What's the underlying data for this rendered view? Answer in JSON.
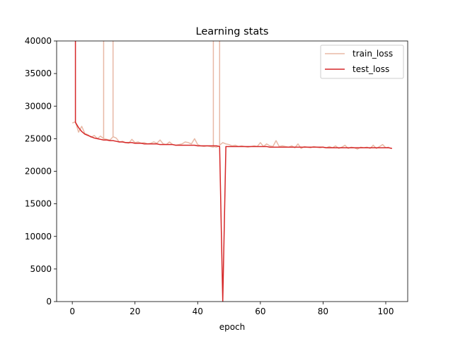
{
  "chart_data": {
    "type": "line",
    "title": "Learning stats",
    "xlabel": "epoch",
    "ylabel": "",
    "xlim": [
      -5,
      107
    ],
    "ylim": [
      0,
      40000
    ],
    "xticks": [
      0,
      20,
      40,
      60,
      80,
      100
    ],
    "yticks": [
      0,
      5000,
      10000,
      15000,
      20000,
      25000,
      30000,
      35000,
      40000
    ],
    "grid": false,
    "legend_position": "top-right",
    "series": [
      {
        "name": "train_loss",
        "color": "#e8b9a6",
        "points": [
          [
            0,
            27400
          ],
          [
            1,
            27600
          ],
          [
            2,
            26000
          ],
          [
            3,
            26900
          ],
          [
            4,
            25800
          ],
          [
            5,
            25600
          ],
          [
            6,
            25200
          ],
          [
            7,
            25500
          ],
          [
            8,
            25000
          ],
          [
            9,
            25400
          ],
          [
            10,
            25000
          ],
          [
            10,
            40000
          ],
          [
            10,
            40000
          ],
          [
            10,
            25000
          ],
          [
            11,
            24900
          ],
          [
            12,
            24800
          ],
          [
            13,
            25300
          ],
          [
            13,
            40000
          ],
          [
            13,
            40000
          ],
          [
            13,
            25300
          ],
          [
            14,
            25100
          ],
          [
            15,
            24500
          ],
          [
            16,
            24600
          ],
          [
            17,
            24400
          ],
          [
            18,
            24300
          ],
          [
            19,
            24900
          ],
          [
            20,
            24400
          ],
          [
            21,
            24500
          ],
          [
            22,
            24300
          ],
          [
            23,
            24400
          ],
          [
            24,
            24200
          ],
          [
            25,
            24300
          ],
          [
            26,
            24500
          ],
          [
            27,
            24300
          ],
          [
            28,
            24800
          ],
          [
            29,
            24200
          ],
          [
            30,
            24100
          ],
          [
            31,
            24500
          ],
          [
            32,
            24100
          ],
          [
            33,
            24000
          ],
          [
            34,
            24100
          ],
          [
            35,
            24200
          ],
          [
            36,
            24500
          ],
          [
            37,
            24400
          ],
          [
            38,
            24200
          ],
          [
            39,
            25000
          ],
          [
            40,
            24100
          ],
          [
            41,
            23900
          ],
          [
            42,
            23800
          ],
          [
            43,
            23900
          ],
          [
            44,
            23800
          ],
          [
            45,
            23700
          ],
          [
            45,
            40000
          ],
          [
            45,
            40000
          ],
          [
            45,
            23800
          ],
          [
            46,
            23700
          ],
          [
            47,
            23900
          ],
          [
            47,
            40000
          ],
          [
            47,
            40000
          ],
          [
            47,
            24000
          ],
          [
            48,
            24400
          ],
          [
            49,
            24200
          ],
          [
            50,
            24100
          ],
          [
            51,
            23900
          ],
          [
            52,
            24000
          ],
          [
            53,
            23800
          ],
          [
            54,
            23900
          ],
          [
            55,
            23800
          ],
          [
            56,
            23700
          ],
          [
            57,
            23800
          ],
          [
            58,
            23900
          ],
          [
            59,
            23800
          ],
          [
            60,
            24400
          ],
          [
            61,
            23800
          ],
          [
            62,
            24200
          ],
          [
            63,
            23900
          ],
          [
            64,
            23800
          ],
          [
            65,
            24700
          ],
          [
            66,
            23800
          ],
          [
            67,
            23900
          ],
          [
            68,
            23800
          ],
          [
            69,
            23700
          ],
          [
            70,
            23900
          ],
          [
            71,
            23600
          ],
          [
            72,
            24200
          ],
          [
            73,
            23500
          ],
          [
            74,
            23800
          ],
          [
            75,
            23700
          ],
          [
            76,
            23600
          ],
          [
            77,
            23800
          ],
          [
            78,
            23700
          ],
          [
            79,
            23600
          ],
          [
            80,
            23700
          ],
          [
            81,
            23600
          ],
          [
            82,
            23800
          ],
          [
            83,
            23600
          ],
          [
            84,
            23900
          ],
          [
            85,
            23500
          ],
          [
            86,
            23700
          ],
          [
            87,
            24000
          ],
          [
            88,
            23500
          ],
          [
            89,
            23700
          ],
          [
            90,
            23600
          ],
          [
            91,
            23400
          ],
          [
            92,
            23700
          ],
          [
            93,
            23600
          ],
          [
            94,
            23700
          ],
          [
            95,
            23500
          ],
          [
            96,
            24000
          ],
          [
            97,
            23500
          ],
          [
            98,
            23800
          ],
          [
            99,
            24100
          ],
          [
            100,
            23600
          ],
          [
            101,
            23700
          ]
        ]
      },
      {
        "name": "test_loss",
        "color": "#d62728",
        "points": [
          [
            1,
            40000
          ],
          [
            1,
            27500
          ],
          [
            2,
            26700
          ],
          [
            3,
            26100
          ],
          [
            4,
            25700
          ],
          [
            5,
            25500
          ],
          [
            6,
            25300
          ],
          [
            7,
            25100
          ],
          [
            8,
            25000
          ],
          [
            9,
            24900
          ],
          [
            10,
            24800
          ],
          [
            11,
            24800
          ],
          [
            12,
            24700
          ],
          [
            13,
            24700
          ],
          [
            14,
            24600
          ],
          [
            15,
            24500
          ],
          [
            16,
            24500
          ],
          [
            17,
            24400
          ],
          [
            18,
            24400
          ],
          [
            19,
            24400
          ],
          [
            20,
            24300
          ],
          [
            21,
            24300
          ],
          [
            22,
            24300
          ],
          [
            23,
            24200
          ],
          [
            24,
            24200
          ],
          [
            25,
            24200
          ],
          [
            26,
            24200
          ],
          [
            27,
            24200
          ],
          [
            28,
            24100
          ],
          [
            29,
            24100
          ],
          [
            30,
            24100
          ],
          [
            31,
            24100
          ],
          [
            32,
            24100
          ],
          [
            33,
            24000
          ],
          [
            34,
            24000
          ],
          [
            35,
            24000
          ],
          [
            36,
            24000
          ],
          [
            37,
            24000
          ],
          [
            38,
            24000
          ],
          [
            39,
            24000
          ],
          [
            40,
            23900
          ],
          [
            41,
            23900
          ],
          [
            42,
            23900
          ],
          [
            43,
            23900
          ],
          [
            44,
            23900
          ],
          [
            45,
            23900
          ],
          [
            46,
            23900
          ],
          [
            47,
            23800
          ],
          [
            48,
            0
          ],
          [
            49,
            23800
          ],
          [
            50,
            23800
          ],
          [
            51,
            23800
          ],
          [
            52,
            23800
          ],
          [
            53,
            23800
          ],
          [
            54,
            23800
          ],
          [
            55,
            23800
          ],
          [
            56,
            23800
          ],
          [
            57,
            23800
          ],
          [
            58,
            23800
          ],
          [
            59,
            23800
          ],
          [
            60,
            23800
          ],
          [
            61,
            23800
          ],
          [
            62,
            23800
          ],
          [
            63,
            23700
          ],
          [
            64,
            23700
          ],
          [
            65,
            23700
          ],
          [
            66,
            23700
          ],
          [
            67,
            23700
          ],
          [
            68,
            23700
          ],
          [
            69,
            23700
          ],
          [
            70,
            23700
          ],
          [
            71,
            23700
          ],
          [
            72,
            23700
          ],
          [
            73,
            23700
          ],
          [
            74,
            23700
          ],
          [
            75,
            23700
          ],
          [
            76,
            23700
          ],
          [
            77,
            23700
          ],
          [
            78,
            23700
          ],
          [
            79,
            23700
          ],
          [
            80,
            23700
          ],
          [
            81,
            23600
          ],
          [
            82,
            23600
          ],
          [
            83,
            23600
          ],
          [
            84,
            23600
          ],
          [
            85,
            23600
          ],
          [
            86,
            23600
          ],
          [
            87,
            23600
          ],
          [
            88,
            23600
          ],
          [
            89,
            23600
          ],
          [
            90,
            23600
          ],
          [
            91,
            23600
          ],
          [
            92,
            23600
          ],
          [
            93,
            23600
          ],
          [
            94,
            23600
          ],
          [
            95,
            23600
          ],
          [
            96,
            23600
          ],
          [
            97,
            23600
          ],
          [
            98,
            23600
          ],
          [
            99,
            23600
          ],
          [
            100,
            23600
          ],
          [
            101,
            23600
          ],
          [
            102,
            23500
          ]
        ]
      }
    ]
  }
}
